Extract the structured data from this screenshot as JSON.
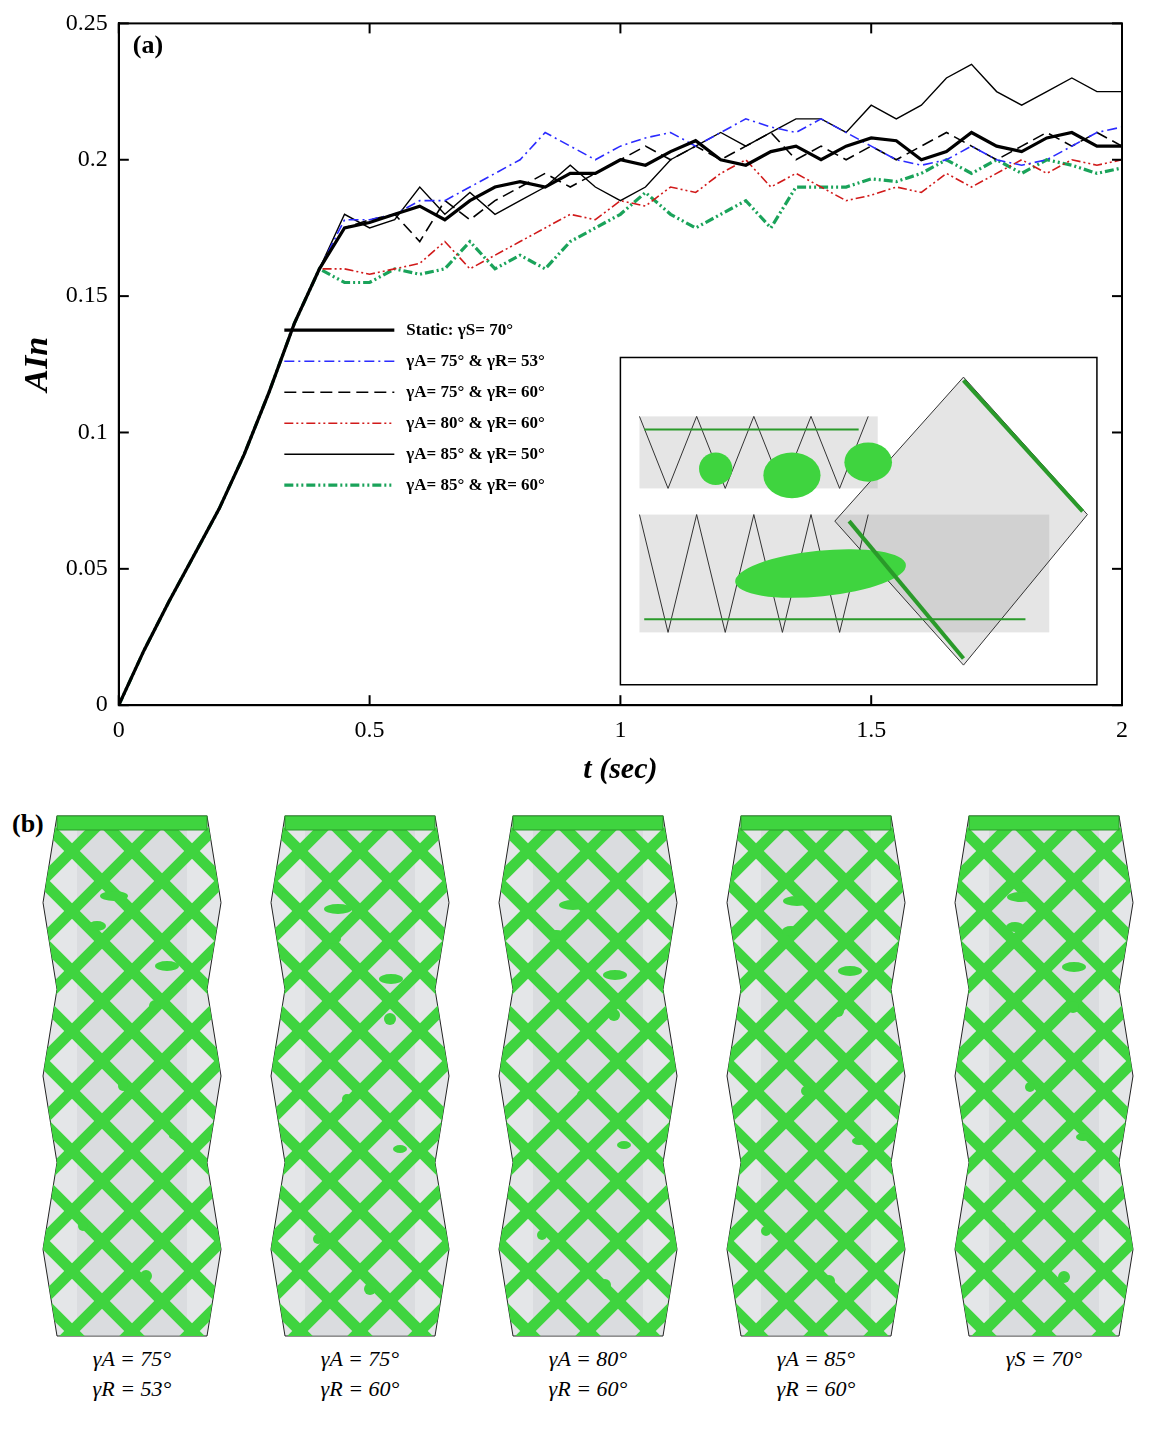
{
  "chart_data": {
    "type": "line",
    "annotations": [
      {
        "text": "(a)"
      }
    ],
    "x_label": "t (sec)",
    "y_label": "AIn",
    "x": [
      0,
      0.05,
      0.1,
      0.15,
      0.2,
      0.25,
      0.3,
      0.35,
      0.4,
      0.45,
      0.5,
      0.55,
      0.6,
      0.65,
      0.7,
      0.75,
      0.8,
      0.85,
      0.9,
      0.95,
      1.0,
      1.05,
      1.1,
      1.15,
      1.2,
      1.25,
      1.3,
      1.35,
      1.4,
      1.45,
      1.5,
      1.55,
      1.6,
      1.65,
      1.7,
      1.75,
      1.8,
      1.85,
      1.9,
      1.95,
      2.0
    ],
    "series": [
      {
        "name": "Static: γS= 70°",
        "color": "#000000",
        "line_style": "solid",
        "values": [
          0,
          0.02,
          0.038,
          0.055,
          0.072,
          0.092,
          0.115,
          0.14,
          0.16,
          0.175,
          0.177,
          0.18,
          0.183,
          0.178,
          0.185,
          0.19,
          0.192,
          0.19,
          0.195,
          0.195,
          0.2,
          0.198,
          0.203,
          0.207,
          0.2,
          0.198,
          0.203,
          0.205,
          0.2,
          0.205,
          0.208,
          0.207,
          0.2,
          0.203,
          0.21,
          0.205,
          0.203,
          0.208,
          0.21,
          0.205,
          0.205
        ]
      },
      {
        "name": "γA= 75° & γR= 53°",
        "color": "#2b2bff",
        "line_style": "dashdot",
        "values": [
          0,
          0.02,
          0.038,
          0.055,
          0.072,
          0.092,
          0.115,
          0.14,
          0.16,
          0.178,
          0.178,
          0.18,
          0.185,
          0.185,
          0.19,
          0.195,
          0.2,
          0.21,
          0.205,
          0.2,
          0.205,
          0.208,
          0.21,
          0.205,
          0.21,
          0.215,
          0.212,
          0.21,
          0.215,
          0.21,
          0.205,
          0.2,
          0.198,
          0.2,
          0.205,
          0.2,
          0.198,
          0.2,
          0.205,
          0.21,
          0.212
        ]
      },
      {
        "name": "γA= 75° & γR= 60°",
        "color": "#000000",
        "line_style": "dashed",
        "values": [
          0,
          0.02,
          0.038,
          0.055,
          0.072,
          0.092,
          0.115,
          0.14,
          0.16,
          0.175,
          0.178,
          0.18,
          0.17,
          0.185,
          0.178,
          0.185,
          0.19,
          0.195,
          0.19,
          0.195,
          0.2,
          0.205,
          0.2,
          0.205,
          0.2,
          0.205,
          0.21,
          0.2,
          0.205,
          0.2,
          0.205,
          0.2,
          0.205,
          0.21,
          0.205,
          0.2,
          0.205,
          0.21,
          0.205,
          0.21,
          0.205
        ]
      },
      {
        "name": "γA= 80° & γR= 60°",
        "color": "#d11a1a",
        "line_style": "dashdotdot",
        "values": [
          0,
          0.02,
          0.038,
          0.055,
          0.072,
          0.092,
          0.115,
          0.14,
          0.16,
          0.16,
          0.158,
          0.16,
          0.162,
          0.17,
          0.16,
          0.165,
          0.17,
          0.175,
          0.18,
          0.178,
          0.185,
          0.183,
          0.19,
          0.188,
          0.195,
          0.2,
          0.19,
          0.195,
          0.19,
          0.185,
          0.187,
          0.19,
          0.188,
          0.195,
          0.19,
          0.195,
          0.2,
          0.195,
          0.2,
          0.198,
          0.2
        ]
      },
      {
        "name": "γA= 85° & γR= 50°",
        "color": "#000000",
        "line_style": "solid",
        "values": [
          0,
          0.02,
          0.038,
          0.055,
          0.072,
          0.092,
          0.115,
          0.14,
          0.16,
          0.18,
          0.175,
          0.178,
          0.19,
          0.18,
          0.188,
          0.18,
          0.185,
          0.19,
          0.198,
          0.19,
          0.185,
          0.19,
          0.2,
          0.205,
          0.21,
          0.205,
          0.21,
          0.215,
          0.215,
          0.21,
          0.22,
          0.215,
          0.22,
          0.23,
          0.235,
          0.225,
          0.22,
          0.225,
          0.23,
          0.225,
          0.225
        ]
      },
      {
        "name": "γA= 85° & γR= 60°",
        "color": "#1aa35a",
        "line_style": "dashdotdot",
        "values": [
          0,
          0.02,
          0.038,
          0.055,
          0.072,
          0.092,
          0.115,
          0.14,
          0.16,
          0.155,
          0.155,
          0.16,
          0.158,
          0.16,
          0.17,
          0.16,
          0.165,
          0.16,
          0.17,
          0.175,
          0.18,
          0.188,
          0.18,
          0.175,
          0.18,
          0.185,
          0.175,
          0.19,
          0.19,
          0.19,
          0.193,
          0.192,
          0.195,
          0.2,
          0.195,
          0.2,
          0.195,
          0.2,
          0.198,
          0.195,
          0.197
        ]
      }
    ],
    "xlim": [
      0,
      2
    ],
    "xticks": [
      0,
      0.5,
      1,
      1.5,
      2
    ],
    "ylim": [
      0,
      0.25
    ],
    "yticks": [
      0,
      0.05,
      0.1,
      0.15,
      0.2,
      0.25
    ],
    "grid": false,
    "legend": "bottom"
  },
  "panel_b": {
    "letter": "(b)",
    "labels": [
      [
        "γA = 75°",
        "γR = 53°"
      ],
      [
        "γA = 75°",
        "γR = 60°"
      ],
      [
        "γA = 80°",
        "γR = 60°"
      ],
      [
        "γA = 85°",
        "γR = 60°"
      ],
      [
        "γS = 70°"
      ]
    ]
  }
}
